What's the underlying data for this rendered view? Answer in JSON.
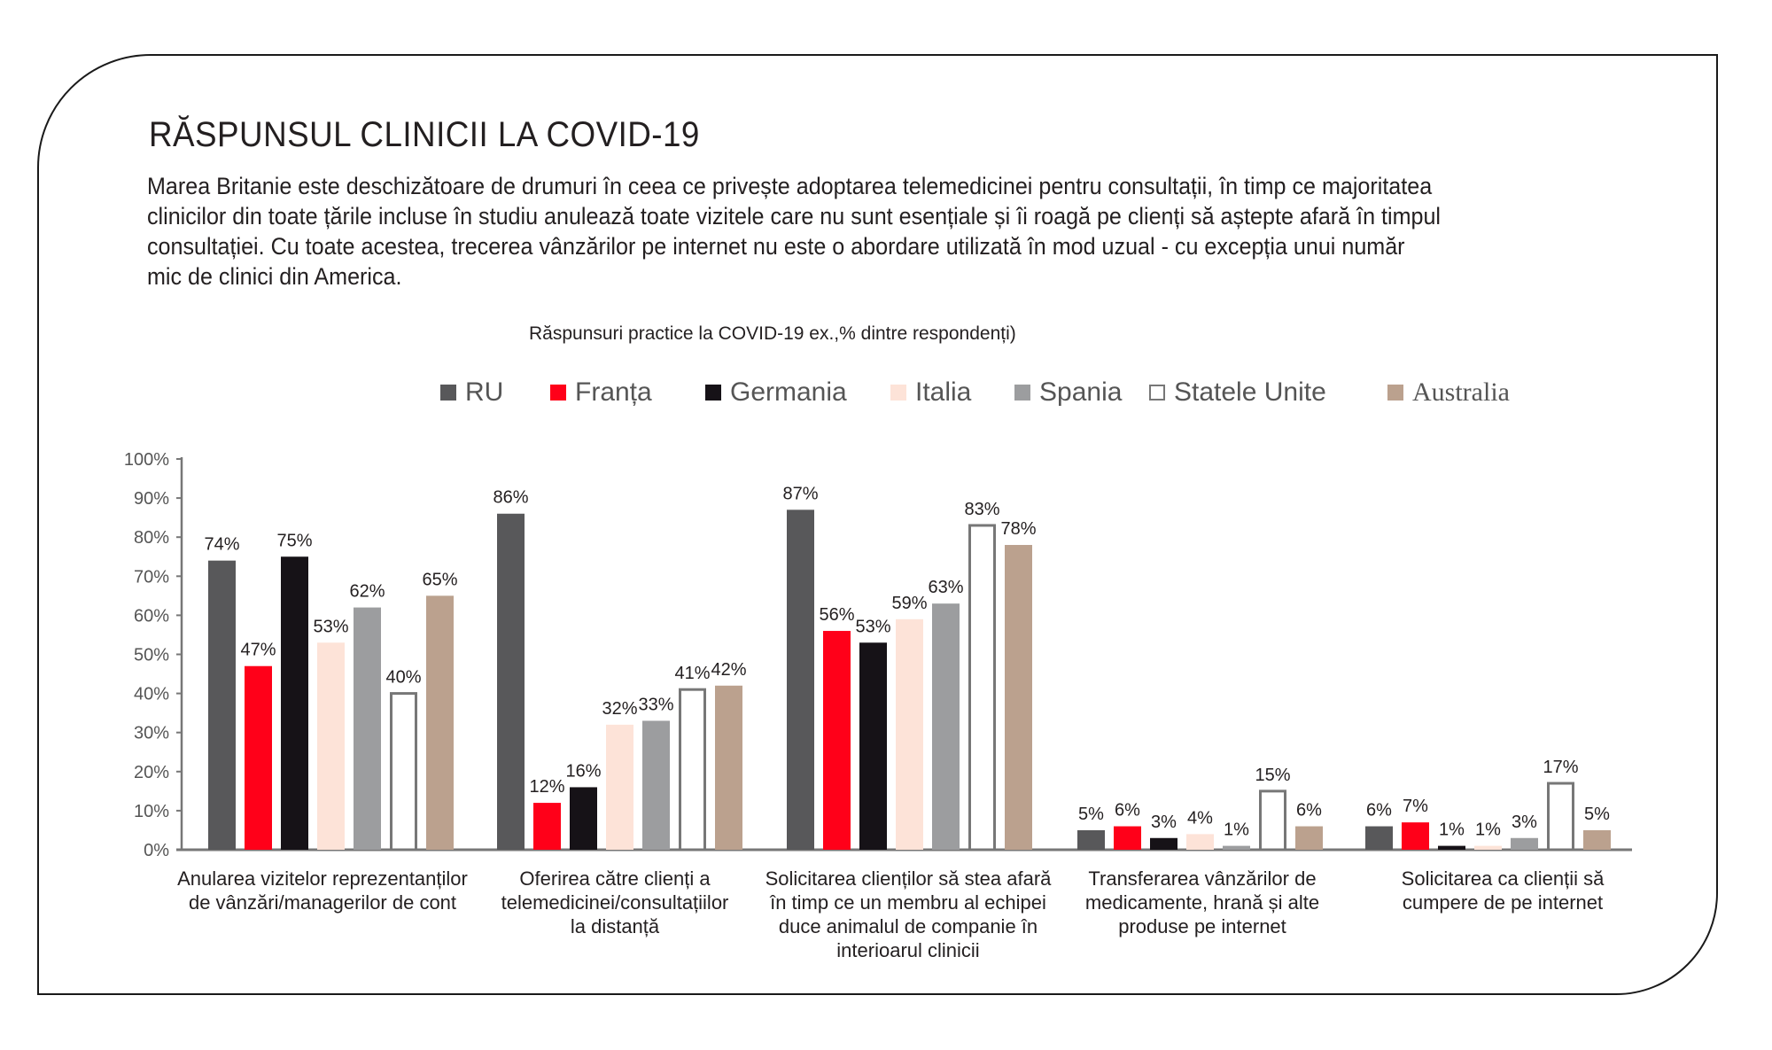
{
  "title": "RĂSPUNSUL CLINICII LA COVID-19",
  "paragraph_lines": [
    "Marea Britanie este deschizătoare de drumuri în ceea ce privește adoptarea telemedicinei pentru consultații, în timp ce majoritatea",
    "clinicilor din toate țările incluse în studiu anulează toate vizitele care nu sunt esențiale și îi roagă pe clienți să aștepte afară în timpul",
    "consultației. Cu toate acestea, trecerea vânzărilor pe internet nu este o abordare utilizată în mod uzual - cu excepția unui număr",
    "mic de clinici din America."
  ],
  "chart_data": {
    "type": "bar",
    "title": "Răspunsuri practice la COVID-19 ex.,% dintre respondenți)",
    "legend_position": "top",
    "grid": false,
    "ylim": [
      0,
      100
    ],
    "y_ticks": [
      "0%",
      "10%",
      "20%",
      "30%",
      "40%",
      "50%",
      "60%",
      "70%",
      "80%",
      "90%",
      "100%"
    ],
    "categories": [
      [
        "Anularea vizitelor reprezentanților",
        "de vânzări/managerilor de cont"
      ],
      [
        "Oferirea către clienți a",
        "telemedicinei/consultațiilor",
        "la distanță"
      ],
      [
        "Solicitarea clienților să stea afară",
        "în timp ce un membru al echipei",
        "duce animalul de companie în",
        "interioarul clinicii"
      ],
      [
        "Transferarea vânzărilor de",
        "medicamente, hrană și alte",
        "produse pe internet"
      ],
      [
        "Solicitarea ca clienții să",
        "cumpere de pe internet"
      ]
    ],
    "series": [
      {
        "name": "RU",
        "color": "#58585a",
        "values": [
          74,
          86,
          87,
          5,
          6
        ]
      },
      {
        "name": "Franța",
        "color": "#ff0019",
        "values": [
          47,
          12,
          56,
          6,
          7
        ]
      },
      {
        "name": "Germania",
        "color": "#161217",
        "values": [
          75,
          16,
          53,
          3,
          1
        ]
      },
      {
        "name": "Italia",
        "color": "#fde3d8",
        "values": [
          53,
          32,
          59,
          4,
          1
        ]
      },
      {
        "name": "Spania",
        "color": "#9c9d9f",
        "values": [
          62,
          33,
          63,
          1,
          3
        ]
      },
      {
        "name": "Statele Unite",
        "color": "#ffffff",
        "outline": "#777777",
        "values": [
          40,
          41,
          83,
          15,
          17
        ]
      },
      {
        "name": "Australia",
        "color": "#bba18e",
        "values": [
          65,
          42,
          78,
          6,
          5
        ]
      }
    ]
  }
}
